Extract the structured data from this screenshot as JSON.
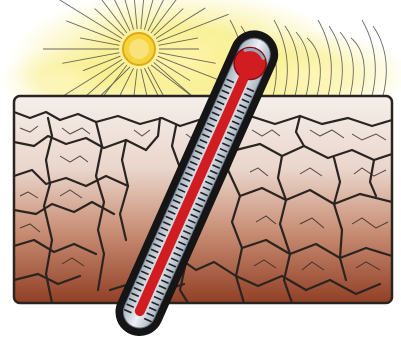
{
  "illustration": {
    "subject": "thermometer-over-cracked-dry-earth",
    "icons": [
      "sun-icon",
      "thermometer-icon",
      "cracked-earth-icon"
    ],
    "colors": {
      "sun_core": "#f2cf2e",
      "sun_glow": "#f7ec7a",
      "earth_top": "#f3ece8",
      "earth_mid": "#e0bfb0",
      "earth_bottom": "#9c4a2e",
      "crack": "#2a2420",
      "thermometer_body": "#151515",
      "thermometer_tube": "#d8dde6",
      "mercury": "#d11d22"
    }
  }
}
